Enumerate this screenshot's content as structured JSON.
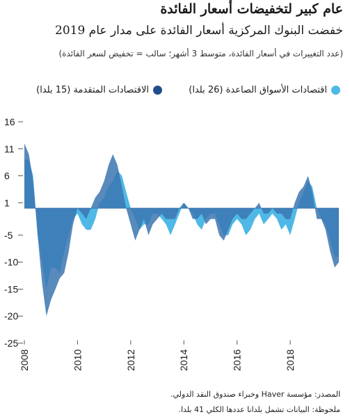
{
  "header": {
    "title": "عام كبير لتخفيضات أسعار الفائدة",
    "subtitle": "خفضت البنوك المركزية أسعار الفائدة على مدار عام 2019",
    "note": "(عدد التغييرات في أسعار الفائدة، متوسط 3 أشهر؛ سالب = تخفيض لسعر الفائدة)"
  },
  "legend": {
    "emerging": "اقتصادات الأسواق الصاعدة (26 بلدا)",
    "advanced": "الاقتصادات المتقدمة (15 بلدا)"
  },
  "footer": {
    "source": "المصدر: مؤسسة Haver وخبراء صندوق النقد الدولي.",
    "note": "ملحوظة: البيانات تشمل بلدانا عددها الكلي 41 بلدا."
  },
  "colors": {
    "emerging": "#4FB8E6",
    "advanced": "#3B75B0",
    "overlap": "#2E6FA8"
  },
  "chart_data": {
    "type": "area",
    "title": "",
    "xlabel": "",
    "ylabel": "",
    "xlim": [
      2008,
      2019.83
    ],
    "ylim": [
      -25,
      16
    ],
    "x_ticks": [
      2008,
      2010,
      2012,
      2014,
      2016,
      2018
    ],
    "y_ticks": [
      16,
      11,
      6,
      1,
      -5,
      -10,
      -15,
      -20,
      -25
    ],
    "grid": false,
    "legend_position": "top",
    "series": [
      {
        "name": "اقتصادات الأسواق الصاعدة (26 بلدا)",
        "color": "#4FB8E6",
        "points": [
          [
            2008.0,
            9
          ],
          [
            2008.17,
            9
          ],
          [
            2008.33,
            6
          ],
          [
            2008.5,
            -5
          ],
          [
            2008.67,
            -10
          ],
          [
            2008.83,
            -15
          ],
          [
            2009.0,
            -11
          ],
          [
            2009.17,
            -11
          ],
          [
            2009.33,
            -12
          ],
          [
            2009.5,
            -8
          ],
          [
            2009.67,
            -5
          ],
          [
            2009.83,
            -2
          ],
          [
            2010.0,
            -1
          ],
          [
            2010.17,
            -3
          ],
          [
            2010.33,
            -4
          ],
          [
            2010.5,
            -4
          ],
          [
            2010.67,
            -2
          ],
          [
            2010.83,
            1
          ],
          [
            2011.0,
            2
          ],
          [
            2011.17,
            4
          ],
          [
            2011.33,
            5
          ],
          [
            2011.5,
            7
          ],
          [
            2011.67,
            6
          ],
          [
            2011.83,
            3
          ],
          [
            2012.0,
            0
          ],
          [
            2012.17,
            -2
          ],
          [
            2012.33,
            -4
          ],
          [
            2012.5,
            -3
          ],
          [
            2012.67,
            -3
          ],
          [
            2012.83,
            -1
          ],
          [
            2013.0,
            -1
          ],
          [
            2013.17,
            -2
          ],
          [
            2013.33,
            -3
          ],
          [
            2013.5,
            -5
          ],
          [
            2013.67,
            -3
          ],
          [
            2013.83,
            -1
          ],
          [
            2014.0,
            1
          ],
          [
            2014.17,
            0
          ],
          [
            2014.33,
            -1
          ],
          [
            2014.5,
            -3
          ],
          [
            2014.67,
            -4
          ],
          [
            2014.83,
            -2
          ],
          [
            2015.0,
            -1
          ],
          [
            2015.17,
            -1
          ],
          [
            2015.33,
            -3
          ],
          [
            2015.5,
            -5
          ],
          [
            2015.67,
            -5
          ],
          [
            2015.83,
            -3
          ],
          [
            2016.0,
            -2
          ],
          [
            2016.17,
            -3
          ],
          [
            2016.33,
            -5
          ],
          [
            2016.5,
            -4
          ],
          [
            2016.67,
            -2
          ],
          [
            2016.83,
            -1
          ],
          [
            2017.0,
            -3
          ],
          [
            2017.17,
            -2
          ],
          [
            2017.33,
            -1
          ],
          [
            2017.5,
            -2
          ],
          [
            2017.67,
            -4
          ],
          [
            2017.83,
            -3
          ],
          [
            2018.0,
            -5
          ],
          [
            2018.17,
            -2
          ],
          [
            2018.33,
            1
          ],
          [
            2018.5,
            3
          ],
          [
            2018.67,
            5
          ],
          [
            2018.83,
            4
          ],
          [
            2019.0,
            0
          ],
          [
            2019.17,
            -2
          ],
          [
            2019.33,
            -3
          ],
          [
            2019.5,
            -6
          ],
          [
            2019.67,
            -9
          ],
          [
            2019.83,
            -9
          ]
        ]
      },
      {
        "name": "الاقتصادات المتقدمة (15 بلدا)",
        "color": "#3B75B0",
        "points": [
          [
            2008.0,
            12
          ],
          [
            2008.17,
            10
          ],
          [
            2008.33,
            5
          ],
          [
            2008.5,
            -5
          ],
          [
            2008.67,
            -14
          ],
          [
            2008.83,
            -20
          ],
          [
            2009.0,
            -17
          ],
          [
            2009.17,
            -15
          ],
          [
            2009.33,
            -13
          ],
          [
            2009.5,
            -12
          ],
          [
            2009.67,
            -8
          ],
          [
            2009.83,
            -3
          ],
          [
            2010.0,
            0
          ],
          [
            2010.17,
            -1
          ],
          [
            2010.33,
            -2
          ],
          [
            2010.5,
            0
          ],
          [
            2010.67,
            2
          ],
          [
            2010.83,
            3
          ],
          [
            2011.0,
            5
          ],
          [
            2011.17,
            8
          ],
          [
            2011.33,
            10
          ],
          [
            2011.5,
            8
          ],
          [
            2011.67,
            4
          ],
          [
            2011.83,
            0
          ],
          [
            2012.0,
            -3
          ],
          [
            2012.17,
            -6
          ],
          [
            2012.33,
            -4
          ],
          [
            2012.5,
            -2
          ],
          [
            2012.67,
            -5
          ],
          [
            2012.83,
            -3
          ],
          [
            2013.0,
            -2
          ],
          [
            2013.17,
            -1
          ],
          [
            2013.33,
            -2
          ],
          [
            2013.5,
            -2
          ],
          [
            2013.67,
            -2
          ],
          [
            2013.83,
            0
          ],
          [
            2014.0,
            1
          ],
          [
            2014.17,
            0
          ],
          [
            2014.33,
            -2
          ],
          [
            2014.5,
            -2
          ],
          [
            2014.67,
            -1
          ],
          [
            2014.83,
            -3
          ],
          [
            2015.0,
            -2
          ],
          [
            2015.17,
            -2
          ],
          [
            2015.33,
            -5
          ],
          [
            2015.5,
            -6
          ],
          [
            2015.67,
            -4
          ],
          [
            2015.83,
            -2
          ],
          [
            2016.0,
            -1
          ],
          [
            2016.17,
            -2
          ],
          [
            2016.33,
            -2
          ],
          [
            2016.5,
            -1
          ],
          [
            2016.67,
            0
          ],
          [
            2016.83,
            1
          ],
          [
            2017.0,
            -1
          ],
          [
            2017.17,
            -1
          ],
          [
            2017.33,
            0
          ],
          [
            2017.5,
            -1
          ],
          [
            2017.67,
            -1
          ],
          [
            2017.83,
            -2
          ],
          [
            2018.0,
            -2
          ],
          [
            2018.17,
            1
          ],
          [
            2018.33,
            3
          ],
          [
            2018.5,
            4
          ],
          [
            2018.67,
            6
          ],
          [
            2018.83,
            3
          ],
          [
            2019.0,
            -2
          ],
          [
            2019.17,
            -2
          ],
          [
            2019.33,
            -4
          ],
          [
            2019.5,
            -8
          ],
          [
            2019.67,
            -11
          ],
          [
            2019.83,
            -10
          ]
        ]
      }
    ]
  }
}
